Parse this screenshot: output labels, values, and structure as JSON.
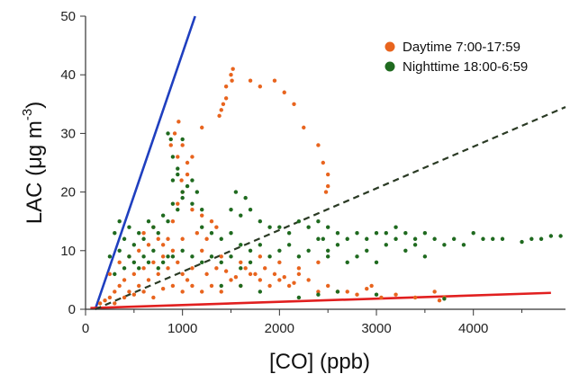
{
  "chart_data": {
    "type": "scatter",
    "xlabel": "[CO] (ppb)",
    "ylabel_main": "LAC (μg m",
    "ylabel_sup": "-3",
    "ylabel_close": ")",
    "xlim": [
      0,
      4950
    ],
    "ylim": [
      0,
      50
    ],
    "x_ticks": [
      0,
      1000,
      2000,
      3000,
      4000
    ],
    "x_minor_ticks": [
      500,
      1500,
      2500,
      3500,
      4500
    ],
    "y_ticks": [
      0,
      10,
      20,
      30,
      40,
      50
    ],
    "legend_position": "top-right",
    "grid": false,
    "series": [
      {
        "name": "Daytime 7:00-17:59",
        "color": "#e8641e",
        "points": [
          [
            150,
            1
          ],
          [
            200,
            1.5
          ],
          [
            250,
            2
          ],
          [
            300,
            3
          ],
          [
            350,
            4
          ],
          [
            400,
            5
          ],
          [
            450,
            3
          ],
          [
            500,
            6
          ],
          [
            550,
            4
          ],
          [
            600,
            7
          ],
          [
            650,
            5
          ],
          [
            700,
            8
          ],
          [
            750,
            6
          ],
          [
            800,
            9
          ],
          [
            850,
            7
          ],
          [
            900,
            10
          ],
          [
            950,
            8
          ],
          [
            1000,
            6
          ],
          [
            1050,
            5
          ],
          [
            1100,
            7
          ],
          [
            300,
            1
          ],
          [
            400,
            2
          ],
          [
            500,
            2.5
          ],
          [
            600,
            3
          ],
          [
            700,
            2
          ],
          [
            800,
            3.5
          ],
          [
            900,
            4
          ],
          [
            1000,
            3
          ],
          [
            1100,
            4
          ],
          [
            1200,
            3
          ],
          [
            1300,
            4
          ],
          [
            1400,
            3
          ],
          [
            1500,
            5
          ],
          [
            1600,
            4
          ],
          [
            1700,
            6
          ],
          [
            1800,
            5
          ],
          [
            1900,
            4
          ],
          [
            2000,
            5
          ],
          [
            2100,
            4
          ],
          [
            2200,
            6
          ],
          [
            2300,
            5
          ],
          [
            2400,
            3
          ],
          [
            2500,
            4
          ],
          [
            2600,
            3
          ],
          [
            1250,
            6
          ],
          [
            1350,
            7
          ],
          [
            1450,
            6.5
          ],
          [
            1550,
            5.5
          ],
          [
            1650,
            7
          ],
          [
            1750,
            6
          ],
          [
            1850,
            7
          ],
          [
            1950,
            6
          ],
          [
            2050,
            5.5
          ],
          [
            2150,
            4.5
          ],
          [
            850,
            12
          ],
          [
            900,
            15
          ],
          [
            950,
            18
          ],
          [
            1000,
            20
          ],
          [
            1050,
            25
          ],
          [
            880,
            28
          ],
          [
            920,
            30
          ],
          [
            960,
            32
          ],
          [
            990,
            22
          ],
          [
            1100,
            17
          ],
          [
            1200,
            16
          ],
          [
            1300,
            15
          ],
          [
            1150,
            13
          ],
          [
            1250,
            12
          ],
          [
            1350,
            14
          ],
          [
            1450,
            38
          ],
          [
            1500,
            40
          ],
          [
            1520,
            41
          ],
          [
            1510,
            39
          ],
          [
            1450,
            36
          ],
          [
            1420,
            35
          ],
          [
            1400,
            34
          ],
          [
            1380,
            33
          ],
          [
            1700,
            39
          ],
          [
            1800,
            38
          ],
          [
            1950,
            39
          ],
          [
            2050,
            37
          ],
          [
            2150,
            35
          ],
          [
            2250,
            31
          ],
          [
            2400,
            28
          ],
          [
            2450,
            25
          ],
          [
            2500,
            23
          ],
          [
            2500,
            21
          ],
          [
            2480,
            20
          ],
          [
            1200,
            31
          ],
          [
            1100,
            26
          ],
          [
            1050,
            23
          ],
          [
            1000,
            28
          ],
          [
            950,
            26
          ],
          [
            450,
            9
          ],
          [
            550,
            10
          ],
          [
            650,
            11
          ],
          [
            750,
            12
          ],
          [
            350,
            8
          ],
          [
            250,
            6
          ],
          [
            600,
            13
          ],
          [
            700,
            14
          ],
          [
            800,
            11
          ],
          [
            1600,
            8
          ],
          [
            1800,
            9
          ],
          [
            2000,
            8
          ],
          [
            2200,
            7
          ],
          [
            2400,
            8
          ],
          [
            1400,
            9
          ],
          [
            1200,
            10
          ],
          [
            1000,
            12
          ],
          [
            3050,
            2
          ],
          [
            3200,
            2.5
          ],
          [
            3400,
            2
          ],
          [
            3600,
            3
          ],
          [
            3650,
            1.5
          ],
          [
            3700,
            2
          ],
          [
            2700,
            3
          ],
          [
            2800,
            2.5
          ],
          [
            2900,
            3.5
          ],
          [
            2950,
            4
          ]
        ]
      },
      {
        "name": "Nighttime 18:00-6:59",
        "color": "#1f6a1f",
        "points": [
          [
            300,
            13
          ],
          [
            350,
            15
          ],
          [
            400,
            12
          ],
          [
            450,
            14
          ],
          [
            500,
            11
          ],
          [
            550,
            13
          ],
          [
            600,
            12
          ],
          [
            650,
            15
          ],
          [
            700,
            14
          ],
          [
            750,
            13
          ],
          [
            800,
            16
          ],
          [
            850,
            15
          ],
          [
            900,
            18
          ],
          [
            950,
            17
          ],
          [
            1000,
            19
          ],
          [
            1050,
            21
          ],
          [
            900,
            22
          ],
          [
            950,
            23
          ],
          [
            1000,
            20
          ],
          [
            1100,
            18
          ],
          [
            1200,
            14
          ],
          [
            1300,
            13
          ],
          [
            1400,
            12
          ],
          [
            1500,
            13
          ],
          [
            1600,
            11
          ],
          [
            1700,
            10
          ],
          [
            1800,
            11
          ],
          [
            1900,
            9
          ],
          [
            2000,
            10
          ],
          [
            2100,
            11
          ],
          [
            2200,
            9
          ],
          [
            2300,
            10
          ],
          [
            2400,
            12
          ],
          [
            2500,
            9
          ],
          [
            2600,
            11
          ],
          [
            2700,
            8
          ],
          [
            2800,
            9
          ],
          [
            2900,
            10
          ],
          [
            3000,
            8
          ],
          [
            3100,
            11
          ],
          [
            3200,
            12
          ],
          [
            3300,
            10
          ],
          [
            3400,
            11
          ],
          [
            3500,
            9
          ],
          [
            3600,
            12
          ],
          [
            3700,
            11
          ],
          [
            3800,
            12
          ],
          [
            3900,
            11
          ],
          [
            4000,
            13
          ],
          [
            4100,
            12
          ],
          [
            4200,
            12
          ],
          [
            4300,
            12
          ],
          [
            4500,
            11.5
          ],
          [
            4600,
            12
          ],
          [
            4700,
            12
          ],
          [
            4800,
            12.5
          ],
          [
            4900,
            12.5
          ],
          [
            1500,
            17
          ],
          [
            1600,
            16
          ],
          [
            1700,
            17
          ],
          [
            1800,
            15
          ],
          [
            1900,
            14
          ],
          [
            2000,
            14
          ],
          [
            2100,
            13
          ],
          [
            2200,
            15
          ],
          [
            2300,
            14
          ],
          [
            2400,
            15
          ],
          [
            2500,
            14
          ],
          [
            1550,
            20
          ],
          [
            1650,
            19
          ],
          [
            900,
            26
          ],
          [
            950,
            24
          ],
          [
            1000,
            29
          ],
          [
            850,
            30
          ],
          [
            880,
            29
          ],
          [
            1100,
            22
          ],
          [
            1150,
            20
          ],
          [
            1200,
            17
          ],
          [
            600,
            9
          ],
          [
            700,
            10
          ],
          [
            800,
            8
          ],
          [
            900,
            9
          ],
          [
            1000,
            10
          ],
          [
            1100,
            9
          ],
          [
            1200,
            8
          ],
          [
            1300,
            9
          ],
          [
            1400,
            8
          ],
          [
            1500,
            9
          ],
          [
            1600,
            7
          ],
          [
            1700,
            8
          ],
          [
            400,
            7
          ],
          [
            500,
            8
          ],
          [
            300,
            6
          ],
          [
            250,
            9
          ],
          [
            350,
            10
          ],
          [
            450,
            9
          ],
          [
            550,
            7
          ],
          [
            650,
            8
          ],
          [
            750,
            7
          ],
          [
            850,
            9
          ],
          [
            2600,
            13
          ],
          [
            2700,
            12
          ],
          [
            2800,
            13
          ],
          [
            2900,
            12
          ],
          [
            3000,
            13
          ],
          [
            3100,
            13
          ],
          [
            3200,
            14
          ],
          [
            3300,
            13
          ],
          [
            3400,
            12
          ],
          [
            3500,
            13
          ],
          [
            2200,
            2
          ],
          [
            2400,
            2.5
          ],
          [
            2600,
            3
          ],
          [
            3000,
            2.5
          ],
          [
            3700,
            1.8
          ],
          [
            1800,
            3
          ],
          [
            1600,
            4
          ],
          [
            1400,
            4
          ],
          [
            2500,
            10
          ],
          [
            2450,
            12
          ]
        ]
      }
    ],
    "fit_lines": [
      {
        "style": "solid",
        "color": "#1f3fbf",
        "x0": 100,
        "y0": 0,
        "x1": 1130,
        "y1": 50
      },
      {
        "style": "solid",
        "color": "#e11f1f",
        "x0": 50,
        "y0": 0.2,
        "x1": 4800,
        "y1": 2.8
      },
      {
        "style": "dashed",
        "color": "#2a3a24",
        "x0": 100,
        "y0": 0,
        "x1": 4950,
        "y1": 34.5
      }
    ]
  }
}
